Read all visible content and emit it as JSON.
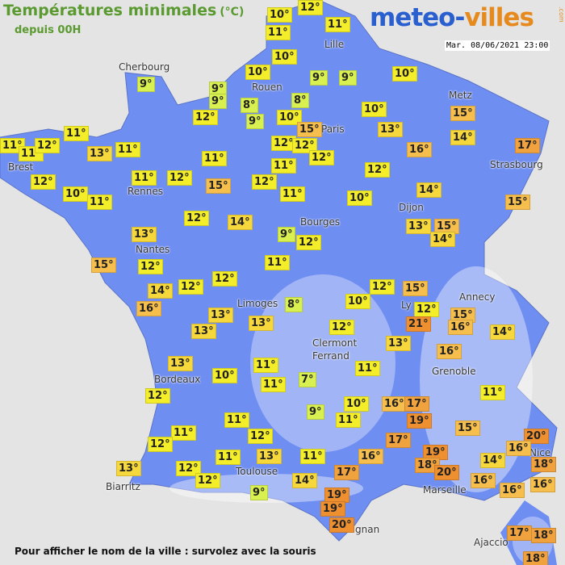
{
  "header": {
    "title": "Températures minimales",
    "unit": "(°C)",
    "subtitle": "depuis 00H"
  },
  "logo": {
    "part1": "meteo-",
    "part2": "villes",
    "tld": ".com"
  },
  "timestamp": "Mar. 08/06/2021 23:00",
  "cities": [
    "Cherbourg",
    "Lille",
    "Rouen",
    "Paris",
    "Metz",
    "Strasbourg",
    "Brest",
    "Rennes",
    "Nantes",
    "Dijon",
    "Bourges",
    "Limoges",
    "Annecy",
    "Ly",
    "Clermont",
    "Ferrand",
    "Grenoble",
    "Bordeaux",
    "Toulouse",
    "Biarritz",
    "Marseille",
    "Nice",
    "gnan",
    "Ajaccio"
  ],
  "temperatures": [
    "12°",
    "10°",
    "11°",
    "11°",
    "10°",
    "9°",
    "9°",
    "9°",
    "10°",
    "9°",
    "9°",
    "10°",
    "8°",
    "9°",
    "8°",
    "10°",
    "12°",
    "10°",
    "15°",
    "15°",
    "13°",
    "14°",
    "11°",
    "11°",
    "11°",
    "12°",
    "13°",
    "11°",
    "12°",
    "12°",
    "16°",
    "17°",
    "12°",
    "11°",
    "11°",
    "12°",
    "12°",
    "11°",
    "12°",
    "15°",
    "12°",
    "10°",
    "11°",
    "11°",
    "10°",
    "14°",
    "15°",
    "12°",
    "14°",
    "13°",
    "15°",
    "14°",
    "9°",
    "12°",
    "13°",
    "15°",
    "12°",
    "11°",
    "14°",
    "12°",
    "12°",
    "16°",
    "13°",
    "8°",
    "10°",
    "12°",
    "15°",
    "12°",
    "15°",
    "21°",
    "13°",
    "13°",
    "12°",
    "16°",
    "14°",
    "13°",
    "16°",
    "13°",
    "11°",
    "11°",
    "10°",
    "7°",
    "11°",
    "12°",
    "11°",
    "9°",
    "10°",
    "11°",
    "16°",
    "17°",
    "19°",
    "11°",
    "15°",
    "20°",
    "11°",
    "12°",
    "12°",
    "17°",
    "16°",
    "19°",
    "11°",
    "13°",
    "11°",
    "16°",
    "18°",
    "20°",
    "14°",
    "18°",
    "13°",
    "12°",
    "12°",
    "17°",
    "14°",
    "16°",
    "16°",
    "9°",
    "16°",
    "19°",
    "19°",
    "20°",
    "17°",
    "18°",
    "18°"
  ],
  "footer": "Pour afficher le nom de la ville : survolez avec la souris"
}
